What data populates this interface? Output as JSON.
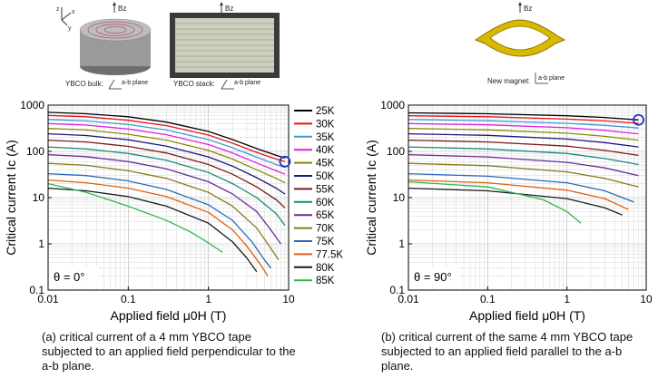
{
  "chart_data": [
    {
      "type": "line",
      "xscale": "log",
      "yscale": "log",
      "xlim": [
        0.01,
        10
      ],
      "ylim": [
        0.1,
        1000
      ],
      "xlabel": "Applied field μ0H (T)",
      "ylabel": "Critical current Ic (A)",
      "xticks": [
        "0.01",
        "0.1",
        "1",
        "10"
      ],
      "yticks": [
        "0.1",
        "1",
        "10",
        "100",
        "1000"
      ],
      "grid": true,
      "annotation": "θ = 0°",
      "series": [
        {
          "name": "25K",
          "color": "#000000",
          "x": [
            0.01,
            0.03,
            0.1,
            0.3,
            1,
            2,
            4,
            7,
            9
          ],
          "y": [
            700,
            650,
            560,
            430,
            270,
            180,
            115,
            82,
            72
          ]
        },
        {
          "name": "30K",
          "color": "#e8141b",
          "x": [
            0.01,
            0.03,
            0.1,
            0.3,
            1,
            2,
            4,
            7,
            9
          ],
          "y": [
            600,
            560,
            470,
            360,
            225,
            150,
            95,
            68,
            60
          ]
        },
        {
          "name": "35K",
          "color": "#3c9ad6",
          "x": [
            0.01,
            0.03,
            0.1,
            0.3,
            1,
            2,
            4,
            7,
            9
          ],
          "y": [
            490,
            455,
            380,
            290,
            180,
            120,
            75,
            52,
            45
          ]
        },
        {
          "name": "40K",
          "color": "#e020e0",
          "x": [
            0.01,
            0.03,
            0.1,
            0.3,
            1,
            2,
            4,
            7,
            9
          ],
          "y": [
            400,
            370,
            305,
            230,
            140,
            92,
            56,
            38,
            32
          ]
        },
        {
          "name": "45K",
          "color": "#8a8a00",
          "x": [
            0.01,
            0.03,
            0.1,
            0.3,
            1,
            2,
            4,
            7,
            9
          ],
          "y": [
            315,
            290,
            235,
            175,
            105,
            68,
            40,
            26,
            21
          ]
        },
        {
          "name": "50K",
          "color": "#1a1a7a",
          "x": [
            0.01,
            0.03,
            0.1,
            0.3,
            1,
            2,
            4,
            7,
            9
          ],
          "y": [
            240,
            220,
            178,
            130,
            76,
            48,
            27,
            16,
            12
          ]
        },
        {
          "name": "55K",
          "color": "#7a1a1a",
          "x": [
            0.01,
            0.03,
            0.1,
            0.3,
            1,
            2,
            4,
            7,
            9
          ],
          "y": [
            175,
            160,
            128,
            92,
            52,
            32,
            17,
            9,
            6
          ]
        },
        {
          "name": "60K",
          "color": "#1a8a7a",
          "x": [
            0.01,
            0.03,
            0.1,
            0.3,
            1,
            2,
            4,
            7,
            9
          ],
          "y": [
            125,
            113,
            90,
            64,
            35,
            20,
            10,
            4.5,
            2.5
          ]
        },
        {
          "name": "65K",
          "color": "#6a2a9a",
          "x": [
            0.01,
            0.03,
            0.1,
            0.3,
            1,
            2,
            4,
            6,
            8
          ],
          "y": [
            85,
            77,
            60,
            42,
            22,
            12,
            5,
            2,
            1
          ]
        },
        {
          "name": "70K",
          "color": "#8a7a1a",
          "x": [
            0.01,
            0.03,
            0.1,
            0.3,
            1,
            2,
            4,
            6,
            7.5
          ],
          "y": [
            55,
            50,
            38,
            26,
            13,
            6.5,
            2.2,
            0.8,
            0.45
          ]
        },
        {
          "name": "75K",
          "color": "#2a6ab0",
          "x": [
            0.01,
            0.03,
            0.1,
            0.3,
            1,
            2,
            3.5,
            5,
            6
          ],
          "y": [
            33,
            30,
            23,
            15,
            7,
            3.2,
            1.1,
            0.45,
            0.3
          ]
        },
        {
          "name": "77.5K",
          "color": "#e06010",
          "x": [
            0.01,
            0.03,
            0.1,
            0.3,
            1,
            2,
            3,
            4.5,
            5.5
          ],
          "y": [
            24,
            21,
            16,
            10.5,
            4.8,
            2,
            0.9,
            0.35,
            0.2
          ]
        },
        {
          "name": "80K",
          "color": "#1a1a1a",
          "x": [
            0.01,
            0.03,
            0.1,
            0.3,
            1,
            2,
            3,
            4
          ],
          "y": [
            16,
            14,
            10.5,
            6.5,
            2.8,
            1.1,
            0.5,
            0.25
          ]
        },
        {
          "name": "85K",
          "color": "#2ab84a",
          "x": [
            0.01,
            0.03,
            0.1,
            0.3,
            0.6,
            1,
            1.5
          ],
          "y": [
            20,
            13,
            6.5,
            3.2,
            1.8,
            1.05,
            0.65
          ]
        }
      ]
    },
    {
      "type": "line",
      "xscale": "log",
      "yscale": "log",
      "xlim": [
        0.01,
        10
      ],
      "ylim": [
        0.1,
        1000
      ],
      "xlabel": "Applied field μ0H (T)",
      "ylabel": "Critical current Ic (A)",
      "xticks": [
        "0.01",
        "0.1",
        "1",
        "10"
      ],
      "yticks": [
        "0.1",
        "1",
        "10",
        "100",
        "1000"
      ],
      "grid": true,
      "annotation": "θ = 90°",
      "series": [
        {
          "name": "25K",
          "color": "#000000",
          "x": [
            0.01,
            0.1,
            1,
            3,
            8
          ],
          "y": [
            680,
            650,
            590,
            540,
            480
          ]
        },
        {
          "name": "30K",
          "color": "#e8141b",
          "x": [
            0.01,
            0.1,
            1,
            3,
            8
          ],
          "y": [
            590,
            560,
            500,
            455,
            405
          ]
        },
        {
          "name": "35K",
          "color": "#3c9ad6",
          "x": [
            0.01,
            0.1,
            1,
            3,
            8
          ],
          "y": [
            490,
            460,
            405,
            365,
            320
          ]
        },
        {
          "name": "40K",
          "color": "#e020e0",
          "x": [
            0.01,
            0.1,
            1,
            3,
            8
          ],
          "y": [
            400,
            375,
            325,
            285,
            240
          ]
        },
        {
          "name": "45K",
          "color": "#8a8a00",
          "x": [
            0.01,
            0.1,
            1,
            3,
            8
          ],
          "y": [
            315,
            292,
            248,
            212,
            175
          ]
        },
        {
          "name": "50K",
          "color": "#1a1a7a",
          "x": [
            0.01,
            0.1,
            1,
            3,
            8
          ],
          "y": [
            240,
            222,
            185,
            155,
            125
          ]
        },
        {
          "name": "55K",
          "color": "#7a1a1a",
          "x": [
            0.01,
            0.1,
            1,
            3,
            8
          ],
          "y": [
            175,
            160,
            130,
            105,
            82
          ]
        },
        {
          "name": "60K",
          "color": "#1a8a7a",
          "x": [
            0.01,
            0.1,
            1,
            3,
            8
          ],
          "y": [
            125,
            113,
            90,
            70,
            52
          ]
        },
        {
          "name": "65K",
          "color": "#6a2a9a",
          "x": [
            0.01,
            0.1,
            1,
            3,
            8
          ],
          "y": [
            85,
            76,
            58,
            44,
            30
          ]
        },
        {
          "name": "70K",
          "color": "#8a7a1a",
          "x": [
            0.01,
            0.1,
            1,
            3,
            8
          ],
          "y": [
            55,
            49,
            36,
            26,
            17
          ]
        },
        {
          "name": "75K",
          "color": "#2a6ab0",
          "x": [
            0.01,
            0.1,
            1,
            3,
            7
          ],
          "y": [
            33,
            29,
            21,
            14,
            8
          ]
        },
        {
          "name": "77.5K",
          "color": "#e06010",
          "x": [
            0.01,
            0.1,
            1,
            3,
            6
          ],
          "y": [
            24,
            21,
            14.5,
            9.5,
            5.5
          ]
        },
        {
          "name": "80K",
          "color": "#1a1a1a",
          "x": [
            0.01,
            0.1,
            1,
            3,
            5
          ],
          "y": [
            16,
            14,
            9.5,
            6,
            4.2
          ]
        },
        {
          "name": "85K",
          "color": "#2ab84a",
          "x": [
            0.01,
            0.1,
            0.5,
            1,
            1.5
          ],
          "y": [
            22,
            17,
            9,
            5,
            2.8
          ]
        }
      ]
    }
  ],
  "top_labels": {
    "bz1": "Bz",
    "bz2": "Bz",
    "bz3": "Bz",
    "bulk_label": "YBCO bulk:",
    "stack_label": "YBCO stack:",
    "magnet_label": "New magnet:",
    "plane1": "a-b plane",
    "plane2": "a-b plane",
    "plane3": "a-b plane",
    "axis_z": "z",
    "axis_x": "x",
    "axis_y": "y"
  },
  "captions": {
    "a": "(a) critical current of a 4 mm YBCO tape subjected to an applied field perpendicular to the a-b plane.",
    "b": "(b) critical current of the same 4 mm YBCO tape subjected to an applied field parallel to the a-b plane."
  }
}
